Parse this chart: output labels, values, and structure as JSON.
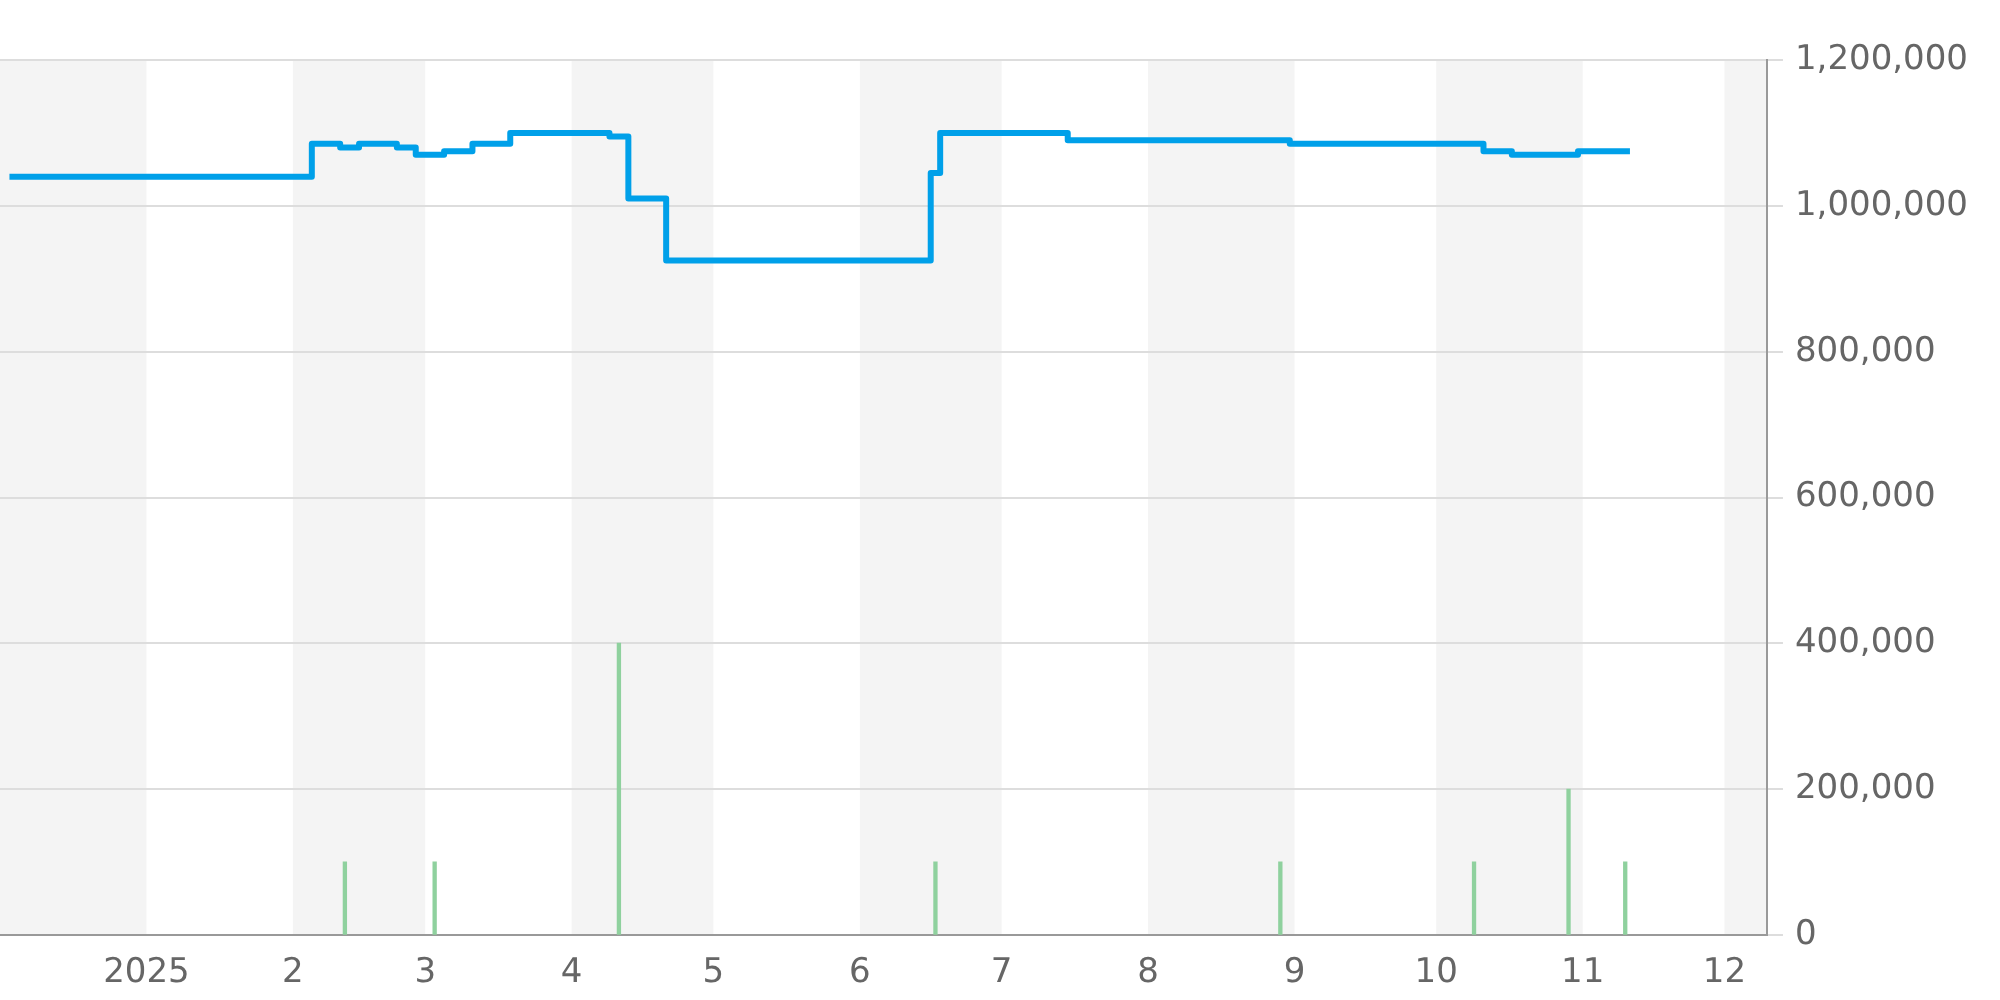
{
  "chart_data": {
    "type": "step",
    "xlim": [
      "2024-12-01",
      "2025-12-10"
    ],
    "xticks": [
      {
        "value": "2025-01-01",
        "label": "2025"
      },
      {
        "value": "2025-02-01",
        "label": "2"
      },
      {
        "value": "2025-03-01",
        "label": "3"
      },
      {
        "value": "2025-04-01",
        "label": "4"
      },
      {
        "value": "2025-05-01",
        "label": "5"
      },
      {
        "value": "2025-06-01",
        "label": "6"
      },
      {
        "value": "2025-07-01",
        "label": "7"
      },
      {
        "value": "2025-08-01",
        "label": "8"
      },
      {
        "value": "2025-09-01",
        "label": "9"
      },
      {
        "value": "2025-10-01",
        "label": "10"
      },
      {
        "value": "2025-11-01",
        "label": "11"
      },
      {
        "value": "2025-12-01",
        "label": "12"
      }
    ],
    "ylim": [
      0,
      1200000
    ],
    "yticks": [
      {
        "value": 0,
        "label": "0"
      },
      {
        "value": 200000,
        "label": "200,000"
      },
      {
        "value": 400000,
        "label": "400,000"
      },
      {
        "value": 600000,
        "label": "600,000"
      },
      {
        "value": 800000,
        "label": "800,000"
      },
      {
        "value": 1000000,
        "label": "1,000,000"
      },
      {
        "value": 1200000,
        "label": "1,200,000"
      }
    ],
    "grid": "y",
    "legend": false,
    "bands": [
      {
        "axis": "x",
        "from": "2024-12-01",
        "to": "2025-01-01",
        "color": "#f4f4f4"
      },
      {
        "axis": "x",
        "from": "2025-02-01",
        "to": "2025-03-01",
        "color": "#f4f4f4"
      },
      {
        "axis": "x",
        "from": "2025-04-01",
        "to": "2025-05-01",
        "color": "#f4f4f4"
      },
      {
        "axis": "x",
        "from": "2025-06-01",
        "to": "2025-07-01",
        "color": "#f4f4f4"
      },
      {
        "axis": "x",
        "from": "2025-08-01",
        "to": "2025-09-01",
        "color": "#f4f4f4"
      },
      {
        "axis": "x",
        "from": "2025-10-01",
        "to": "2025-11-01",
        "color": "#f4f4f4"
      },
      {
        "axis": "x",
        "from": "2025-12-01",
        "to": "2025-12-10",
        "color": "#f4f4f4"
      }
    ],
    "series": [
      {
        "color": "#00a0e9",
        "x": [
          "2024-12-03",
          "2025-02-05",
          "2025-02-11",
          "2025-02-15",
          "2025-02-23",
          "2025-02-27",
          "2025-03-05",
          "2025-03-11",
          "2025-03-19",
          "2025-04-09",
          "2025-04-13",
          "2025-04-21",
          "2025-06-16",
          "2025-06-18",
          "2025-07-15",
          "2025-08-31",
          "2025-10-11",
          "2025-10-17",
          "2025-10-31",
          "2025-11-11"
        ],
        "values": [
          1040000,
          1085000,
          1080000,
          1085000,
          1080000,
          1070000,
          1075000,
          1085000,
          1100000,
          1095000,
          1010000,
          925000,
          1045000,
          1100000,
          1090000,
          1085000,
          1075000,
          1070000,
          1075000,
          1075000
        ]
      },
      {
        "type": "bar",
        "color": "#8fd19e",
        "x": [
          "2025-02-12",
          "2025-03-03",
          "2025-04-11",
          "2025-06-17",
          "2025-08-29",
          "2025-10-09",
          "2025-10-29",
          "2025-11-10"
        ],
        "values": [
          100000,
          100000,
          400000,
          100000,
          100000,
          100000,
          200000,
          100000
        ]
      }
    ]
  }
}
